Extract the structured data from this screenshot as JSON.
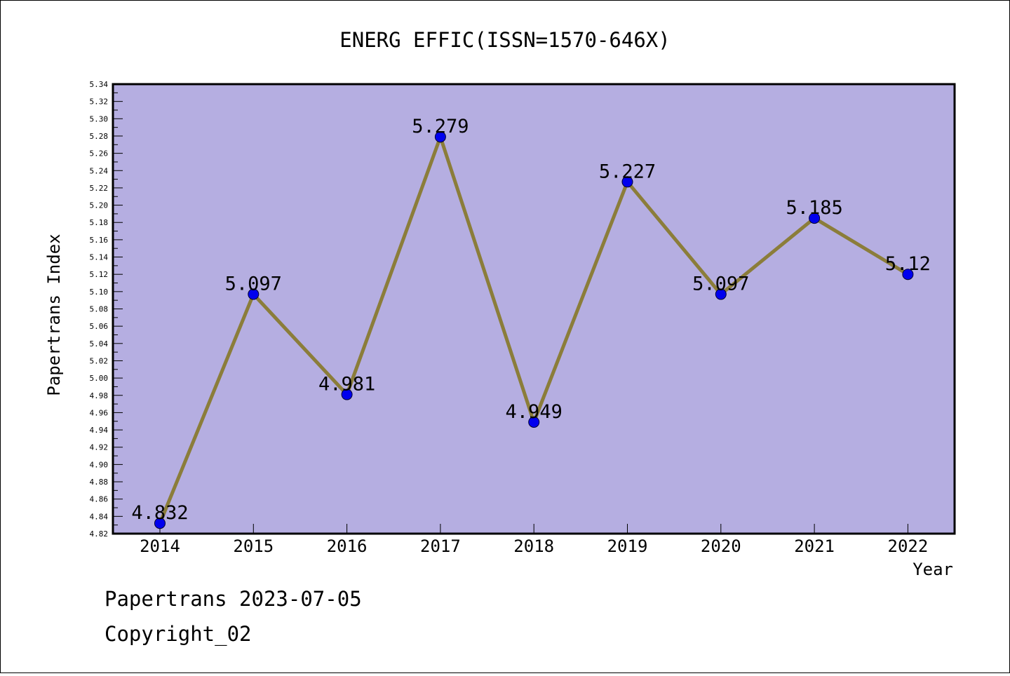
{
  "chart_data": {
    "type": "line",
    "title": "ENERG EFFIC(ISSN=1570-646X)",
    "xlabel": "Year",
    "ylabel": "Papertrans Index",
    "categories": [
      "2014",
      "2015",
      "2016",
      "2017",
      "2018",
      "2019",
      "2020",
      "2021",
      "2022"
    ],
    "series": [
      {
        "values": [
          4.832,
          5.097,
          4.981,
          5.279,
          4.949,
          5.227,
          5.097,
          5.185,
          5.12
        ],
        "labels": [
          "4.832",
          "5.097",
          "4.981",
          "5.279",
          "4.949",
          "5.227",
          "5.097",
          "5.185",
          "5.12"
        ]
      }
    ],
    "ylim": [
      4.82,
      5.34
    ],
    "ytick_step": 0.02,
    "grid": false,
    "legend": "none",
    "colors": {
      "plot_background": "#b5aee1",
      "line": "#8b7d3a",
      "marker": "#0000ee"
    }
  },
  "footer": {
    "line1": "Papertrans 2023-07-05",
    "line2": "Copyright_02"
  }
}
